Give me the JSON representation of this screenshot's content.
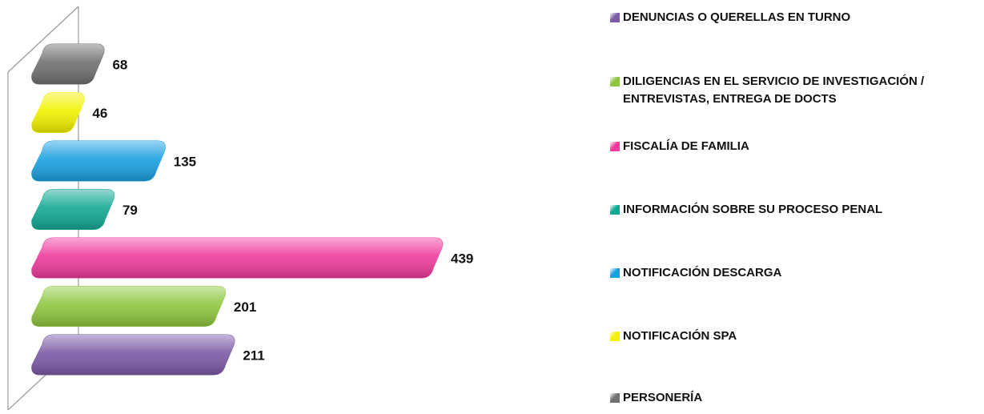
{
  "chart_data": {
    "type": "bar",
    "categories": [
      "DENUNCIAS O QUERELLAS EN TURNO",
      "DILIGENCIAS EN EL SERVICIO DE INVESTIGACIÓN / ENTREVISTAS, ENTREGA DE DOCTS",
      "FISCALÍA DE FAMILIA",
      "INFORMACIÓN SOBRE SU PROCESO PENAL",
      "NOTIFICACIÓN DESCARGA",
      "NOTIFICACIÓN SPA",
      "PERSONERÍA"
    ],
    "values": [
      211,
      201,
      439,
      79,
      135,
      46,
      68
    ],
    "colors": [
      "#7b5aa6",
      "#8fc640",
      "#ee3b9c",
      "#14a894",
      "#1aa0e0",
      "#f2f200",
      "#707070"
    ],
    "legend": "right"
  }
}
